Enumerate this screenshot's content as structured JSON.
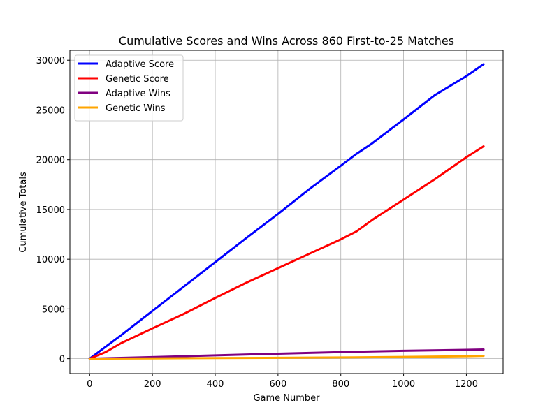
{
  "chart_data": {
    "type": "line",
    "title": "Cumulative Scores and Wins Across 860 First-to-25 Matches",
    "xlabel": "Game Number",
    "ylabel": "Cumulative Totals",
    "xlim": [
      -63,
      1317
    ],
    "ylim": [
      -1500,
      31000
    ],
    "x_ticks": [
      0,
      200,
      400,
      600,
      800,
      1000,
      1200
    ],
    "y_ticks": [
      0,
      5000,
      10000,
      15000,
      20000,
      25000,
      30000
    ],
    "grid": true,
    "legend_position": "top-left",
    "series": [
      {
        "name": "Adaptive Score",
        "color": "#0000ff",
        "points": [
          [
            0,
            0
          ],
          [
            100,
            2350
          ],
          [
            200,
            4800
          ],
          [
            300,
            7250
          ],
          [
            400,
            9700
          ],
          [
            500,
            12150
          ],
          [
            600,
            14550
          ],
          [
            700,
            17050
          ],
          [
            800,
            19400
          ],
          [
            850,
            20600
          ],
          [
            900,
            21650
          ],
          [
            1000,
            24050
          ],
          [
            1100,
            26500
          ],
          [
            1200,
            28400
          ],
          [
            1255,
            29600
          ]
        ]
      },
      {
        "name": "Genetic Score",
        "color": "#ff0000",
        "points": [
          [
            0,
            0
          ],
          [
            50,
            650
          ],
          [
            100,
            1550
          ],
          [
            200,
            3050
          ],
          [
            300,
            4500
          ],
          [
            400,
            6100
          ],
          [
            500,
            7650
          ],
          [
            600,
            9100
          ],
          [
            700,
            10550
          ],
          [
            800,
            12000
          ],
          [
            850,
            12800
          ],
          [
            900,
            13950
          ],
          [
            1000,
            16000
          ],
          [
            1100,
            18050
          ],
          [
            1200,
            20250
          ],
          [
            1255,
            21350
          ]
        ]
      },
      {
        "name": "Adaptive Wins",
        "color": "#800080",
        "points": [
          [
            0,
            0
          ],
          [
            200,
            160
          ],
          [
            400,
            330
          ],
          [
            600,
            500
          ],
          [
            800,
            660
          ],
          [
            1000,
            790
          ],
          [
            1200,
            890
          ],
          [
            1255,
            920
          ]
        ]
      },
      {
        "name": "Genetic Wins",
        "color": "#ffa500",
        "points": [
          [
            0,
            0
          ],
          [
            200,
            30
          ],
          [
            400,
            55
          ],
          [
            600,
            85
          ],
          [
            800,
            120
          ],
          [
            1000,
            175
          ],
          [
            1200,
            250
          ],
          [
            1255,
            280
          ]
        ]
      }
    ]
  }
}
